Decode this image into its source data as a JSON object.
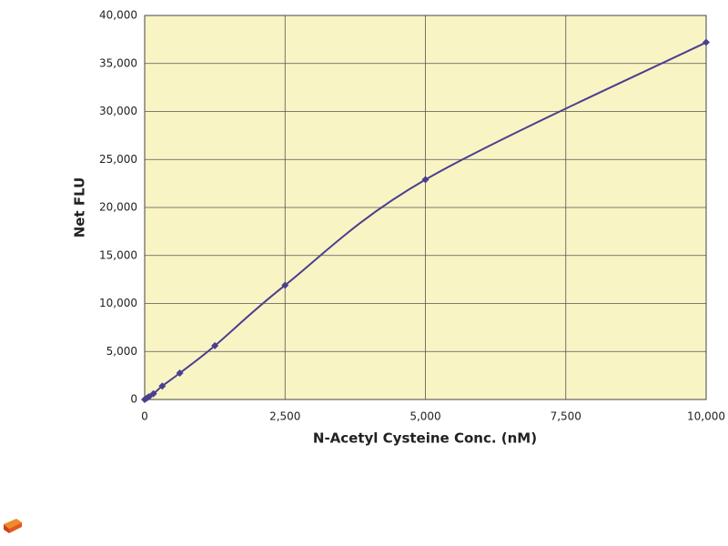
{
  "chart_data": {
    "type": "line",
    "x_label": "N-Acetyl Cysteine Conc. (nM)",
    "y_label": "Net FLU",
    "x": [
      0,
      39,
      78,
      156,
      313,
      625,
      1250,
      2500,
      5000,
      10000
    ],
    "series": [
      {
        "color": "#4a3f8f",
        "values": [
          0,
          150,
          300,
          600,
          1400,
          2750,
          5600,
          11900,
          22900,
          37200
        ]
      }
    ],
    "xlim": [
      0,
      10000
    ],
    "xticks": [
      0,
      {
        "value": 2500,
        "label": "2,500"
      },
      {
        "value": 5000,
        "label": "5,000"
      },
      {
        "value": 7500,
        "label": "7,500"
      },
      {
        "value": 10000,
        "label": "10,000"
      }
    ],
    "ylim": [
      0,
      40000
    ],
    "yticks": [
      0,
      {
        "value": 5000,
        "label": "5,000"
      },
      {
        "value": 10000,
        "label": "10,000"
      },
      {
        "value": 15000,
        "label": "15,000"
      },
      {
        "value": 20000,
        "label": "20,000"
      },
      {
        "value": 25000,
        "label": "25,000"
      },
      {
        "value": 30000,
        "label": "30,000"
      },
      {
        "value": 35000,
        "label": "35,000"
      },
      {
        "value": 40000,
        "label": "40,000"
      }
    ],
    "grid": true
  }
}
